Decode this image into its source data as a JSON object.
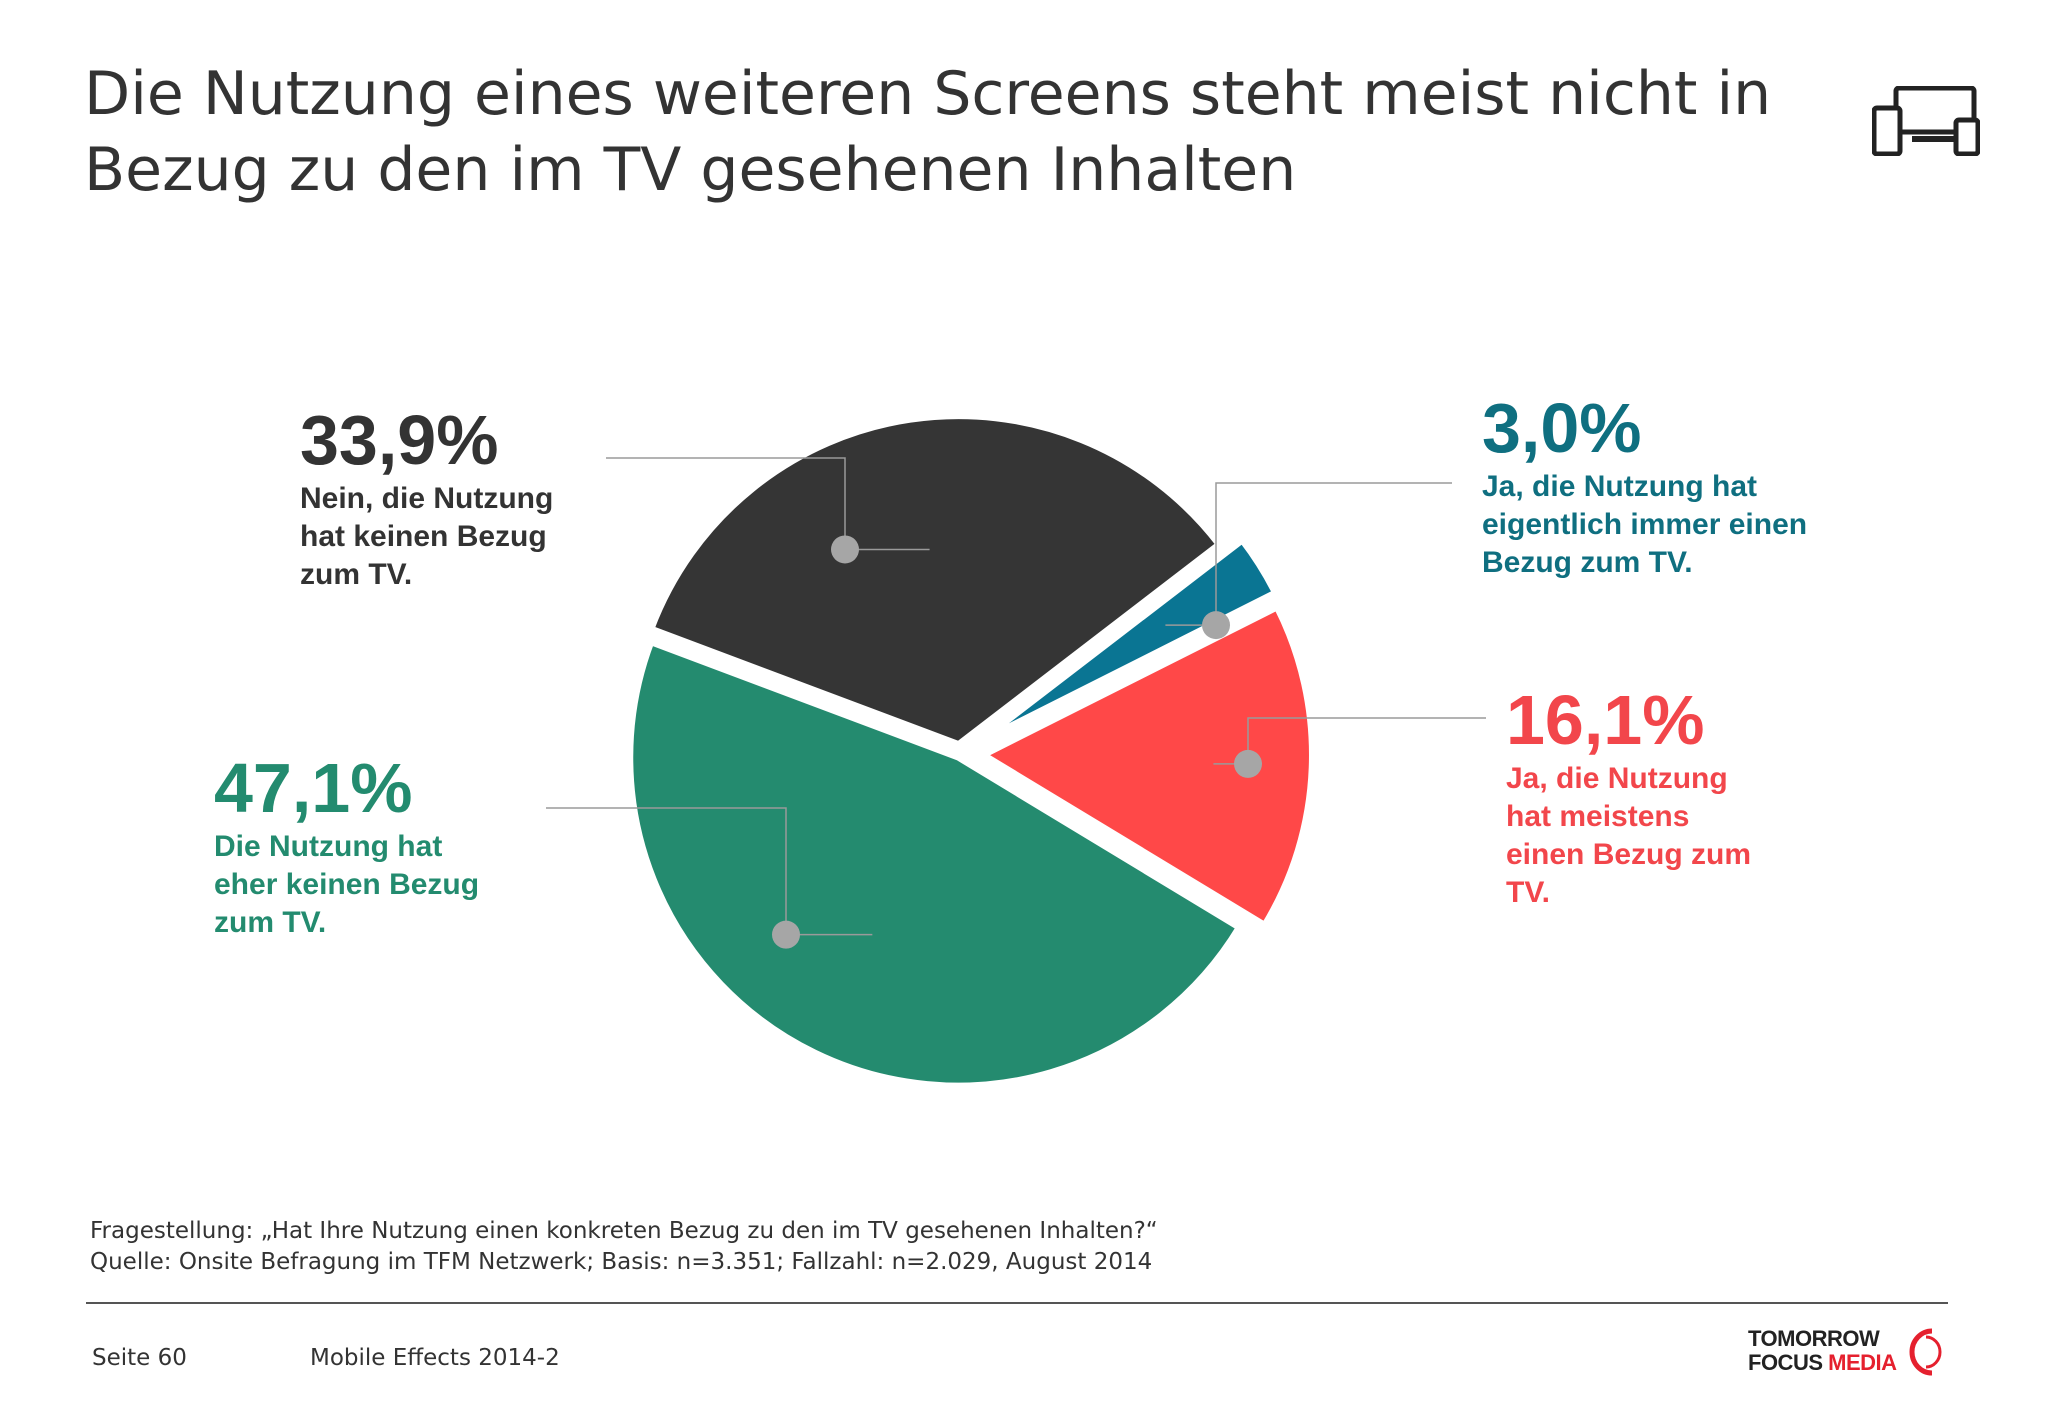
{
  "title": "Die Nutzung eines weiteren Screens steht meist nicht in Bezug zu den im TV gesehenen Inhalten",
  "footer": {
    "question": "Fragestellung: „Hat Ihre Nutzung einen konkreten Bezug zu den im TV gesehenen Inhalten?“",
    "source": "Quelle: Onsite Befragung im TFM Netzwerk; Basis: n=3.351; Fallzahl: n=2.029, August 2014",
    "page": "Seite 60",
    "report": "Mobile Effects 2014-2"
  },
  "logo": {
    "line1": "TOMORROW",
    "line2_part1": "FOCUS",
    "line2_part2": "MEDIA"
  },
  "icons": {
    "header": "devices-icon",
    "logo": "logo-mark-icon"
  },
  "chart_data": {
    "type": "pie",
    "title": "",
    "unit": "%",
    "start": "top, clockwise, exploded slices",
    "slices": [
      {
        "label": "3,0%",
        "value": 3.0,
        "description": "Ja, die Nutzung hat eigentlich immer einen Bezug zum TV.",
        "color": "#0a7593"
      },
      {
        "label": "16,1%",
        "value": 16.1,
        "description": "Ja, die Nutzung hat meistens einen Bezug zum TV.",
        "color": "#ff4848"
      },
      {
        "label": "47,1%",
        "value": 47.1,
        "description": "Die Nutzung hat eher keinen Bezug zum TV.",
        "color": "#248b6f"
      },
      {
        "label": "33,9%",
        "value": 33.9,
        "description": "Nein, die Nutzung hat keinen Bezug zum TV.",
        "color": "#353535"
      }
    ]
  }
}
